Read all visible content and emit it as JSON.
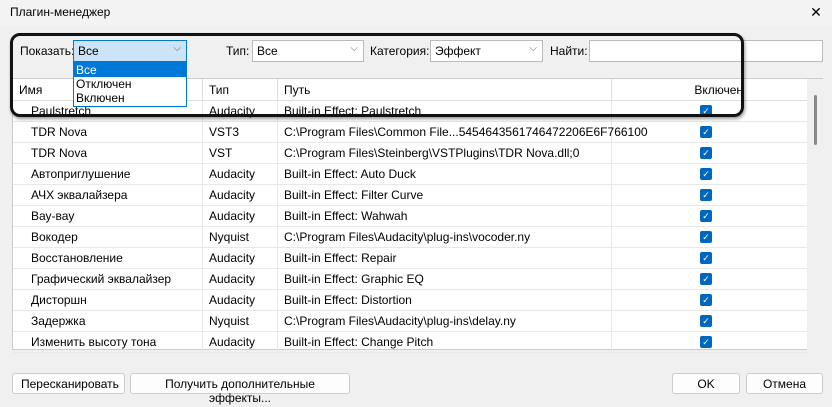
{
  "window": {
    "title": "Плагин-менеджер",
    "close_icon": "close-icon"
  },
  "filters": {
    "show_label": "Показать:",
    "show_value": "Все",
    "type_label": "Тип:",
    "type_value": "Все",
    "category_label": "Категория:",
    "category_value": "Эффект",
    "find_label": "Найти:",
    "find_value": ""
  },
  "show_options": [
    "Все",
    "Отключен",
    "Включен"
  ],
  "columns": [
    "Имя",
    "Тип",
    "Путь",
    "Включен"
  ],
  "rows": [
    {
      "name": "Paulstretch",
      "type": "Audacity",
      "path": "Built-in Effect: Paulstretch",
      "enabled": true
    },
    {
      "name": "TDR Nova",
      "type": "VST3",
      "path": "C:\\Program Files\\Common File...5454643561746472206E6F766100",
      "enabled": true
    },
    {
      "name": "TDR Nova",
      "type": "VST",
      "path": "C:\\Program Files\\Steinberg\\VSTPlugins\\TDR Nova.dll;0",
      "enabled": true
    },
    {
      "name": "Автоприглушение",
      "type": "Audacity",
      "path": "Built-in Effect: Auto Duck",
      "enabled": true
    },
    {
      "name": "АЧХ эквалайзера",
      "type": "Audacity",
      "path": "Built-in Effect: Filter Curve",
      "enabled": true
    },
    {
      "name": "Вау-вау",
      "type": "Audacity",
      "path": "Built-in Effect: Wahwah",
      "enabled": true
    },
    {
      "name": "Вокодер",
      "type": "Nyquist",
      "path": "C:\\Program Files\\Audacity\\plug-ins\\vocoder.ny",
      "enabled": true
    },
    {
      "name": "Восстановление",
      "type": "Audacity",
      "path": "Built-in Effect: Repair",
      "enabled": true
    },
    {
      "name": "Графический эквалайзер",
      "type": "Audacity",
      "path": "Built-in Effect: Graphic EQ",
      "enabled": true
    },
    {
      "name": "Дисторшн",
      "type": "Audacity",
      "path": "Built-in Effect: Distortion",
      "enabled": true
    },
    {
      "name": "Задержка",
      "type": "Nyquist",
      "path": "C:\\Program Files\\Audacity\\plug-ins\\delay.ny",
      "enabled": true
    },
    {
      "name": "Изменить высоту тона",
      "type": "Audacity",
      "path": "Built-in Effect: Change Pitch",
      "enabled": true
    }
  ],
  "buttons": {
    "rescan": "Пересканировать",
    "get_more": "Получить дополнительные эффекты...",
    "ok": "OK",
    "cancel": "Отмена"
  }
}
